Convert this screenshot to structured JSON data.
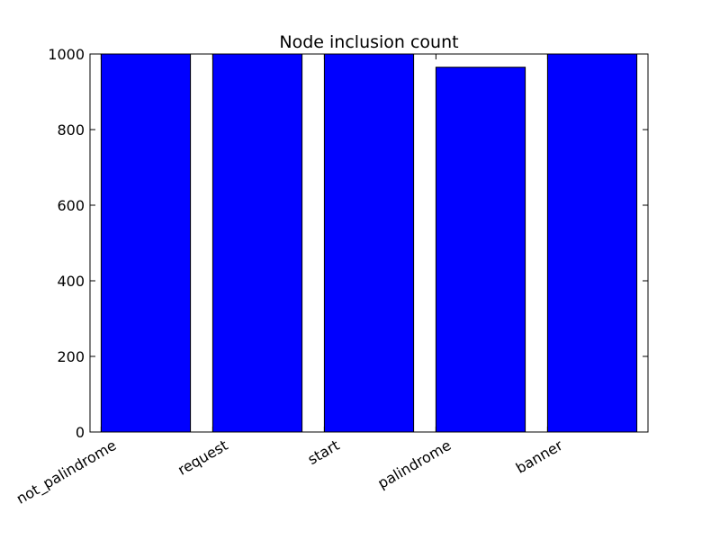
{
  "chart_data": {
    "type": "bar",
    "title": "Node inclusion count",
    "xlabel": "",
    "ylabel": "",
    "categories": [
      "not_palindrome",
      "request",
      "start",
      "palindrome",
      "banner"
    ],
    "values": [
      1000,
      1000,
      1000,
      965,
      1000
    ],
    "ylim": [
      0,
      1000
    ],
    "yticks": [
      0,
      200,
      400,
      600,
      800,
      1000
    ],
    "ytick_labels": [
      "0",
      "200",
      "400",
      "600",
      "800",
      "1000"
    ],
    "grid": false,
    "bar_color": "#0000ff",
    "edge_color": "#000000"
  }
}
